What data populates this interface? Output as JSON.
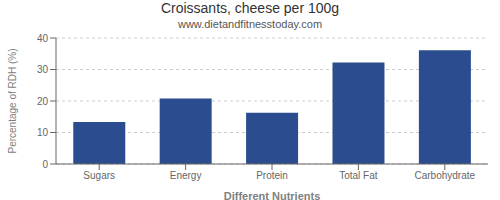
{
  "chart_data": {
    "type": "bar",
    "title": "Croissants, cheese per 100g",
    "subtitle": "www.dietandfitnesstoday.com",
    "xlabel": "Different Nutrients",
    "ylabel": "Percentage of RDH (%)",
    "categories": [
      "Sugars",
      "Energy",
      "Protein",
      "Total Fat",
      "Carbohydrate"
    ],
    "values": [
      13.3,
      20.8,
      16.3,
      32.2,
      36.1
    ],
    "color": "#2b4d8f",
    "ylim": [
      0,
      40
    ],
    "yticks": [
      0,
      10,
      20,
      30,
      40
    ],
    "grid": true
  }
}
